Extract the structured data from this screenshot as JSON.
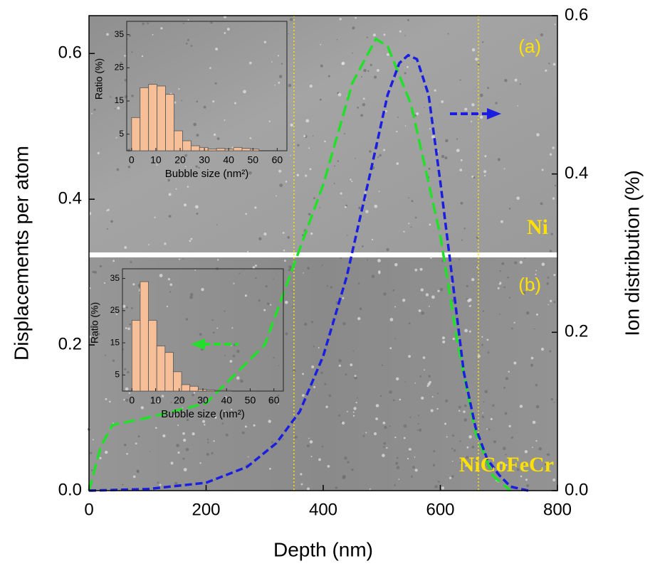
{
  "chart_data": [
    {
      "type": "line",
      "xlabel": "Depth (nm)",
      "ylabel": "Displacements per atom",
      "y2label": "Ion distribution (%)",
      "xlim": [
        0,
        800
      ],
      "xticks": [
        0,
        200,
        400,
        600,
        800
      ],
      "ylim": [
        0,
        0.652
      ],
      "yticks": [
        {
          "value": 0,
          "label": "0.0"
        },
        0.2,
        0.4,
        0.6
      ],
      "y2lim": [
        0,
        0.6
      ],
      "y2ticks": [
        {
          "value": 0,
          "label": "0.0"
        },
        0.2,
        0.4,
        0.6
      ],
      "vlines": [
        350,
        665
      ],
      "vline_color": "#ffe100",
      "annotations": [
        "(a)",
        "(b)",
        "Ni",
        "NiCoFeCr"
      ],
      "annotation_color": "#ffe100",
      "series": [
        {
          "color": "#22e02a",
          "x": [
            0,
            20,
            40,
            100,
            200,
            300,
            350,
            400,
            450,
            490,
            510,
            550,
            600,
            630,
            660,
            690,
            720
          ],
          "values": [
            0,
            0.06,
            0.09,
            0.1,
            0.12,
            0.2,
            0.31,
            0.42,
            0.56,
            0.62,
            0.61,
            0.53,
            0.35,
            0.2,
            0.08,
            0.02,
            0
          ]
        },
        {
          "color": "#1a1ee0",
          "axis": "y2",
          "x": [
            0,
            100,
            200,
            270,
            320,
            360,
            400,
            440,
            480,
            510,
            530,
            545,
            560,
            580,
            600,
            620,
            640,
            660,
            680,
            700,
            720,
            750
          ],
          "values": [
            0,
            0.002,
            0.01,
            0.03,
            0.06,
            0.1,
            0.17,
            0.27,
            0.4,
            0.5,
            0.54,
            0.55,
            0.545,
            0.5,
            0.39,
            0.27,
            0.15,
            0.08,
            0.04,
            0.02,
            0.005,
            0
          ]
        }
      ]
    },
    {
      "type": "histogram",
      "xlabel": "Bubble size (nm²)",
      "ylabel": "Ratio (%)",
      "color": "#f7bf98",
      "bins": [
        0,
        3.5,
        7,
        10.5,
        14,
        17.5,
        21,
        24.5,
        28,
        31.5,
        35,
        38.5,
        42,
        45.5,
        49,
        52.5
      ],
      "values": [
        10,
        19,
        20,
        19.5,
        17,
        6,
        3,
        1.5,
        1,
        0.5,
        0.7,
        0.5,
        1,
        0.7,
        0.5
      ],
      "xlim": [
        -2,
        64
      ],
      "xticks": [
        0,
        10,
        20,
        30,
        40,
        50,
        60
      ],
      "ylim": [
        0,
        39
      ],
      "yticks": [
        5,
        15,
        25,
        35
      ]
    },
    {
      "type": "histogram",
      "xlabel": "Bubble size (nm²)",
      "ylabel": "Ratio (%)",
      "color": "#f7bf98",
      "bins": [
        0,
        3.5,
        7,
        10.5,
        14,
        17.5,
        21,
        24.5,
        28,
        31.5,
        35,
        38.5,
        42
      ],
      "values": [
        22,
        34,
        22,
        14,
        12,
        6,
        2,
        1.5,
        0.5,
        0.3,
        0.2,
        0.2
      ],
      "xlim": [
        -4,
        64
      ],
      "xticks": [
        0,
        10,
        20,
        30,
        40,
        50,
        60
      ],
      "ylim": [
        0,
        38
      ],
      "yticks": [
        5,
        15,
        25,
        35
      ]
    }
  ]
}
